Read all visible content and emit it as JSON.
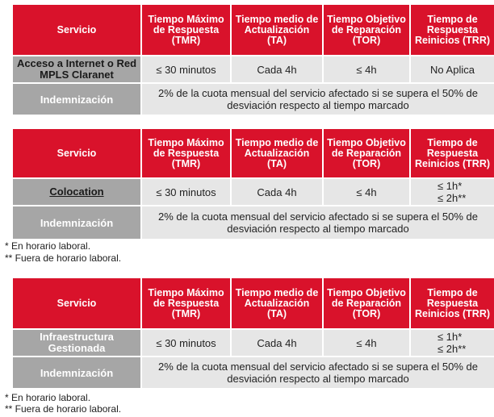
{
  "headers": {
    "servicio": "Servicio",
    "tmr": "Tiempo Máximo de Respuesta (TMR)",
    "ta": "Tiempo medio de Actualización (TA)",
    "tor": "Tiempo Objetivo de Reparación (TOR)",
    "trr": "Tiempo de Respuesta Reinicios (TRR)"
  },
  "indemnizacion_label": "Indemnización",
  "indemnizacion_text": "2% de la cuota mensual del servicio afectado si se supera el 50% de desviación respecto al tiempo marcado",
  "tables": [
    {
      "service": "Acceso a Internet o Red MPLS Claranet",
      "tmr": "≤ 30 minutos",
      "ta": "Cada 4h",
      "tor": "≤ 4h",
      "trr": [
        "No Aplica"
      ]
    },
    {
      "service": "Colocation",
      "tmr": "≤ 30 minutos",
      "ta": "Cada 4h",
      "tor": "≤ 4h",
      "trr": [
        "≤ 1h*",
        "≤ 2h**"
      ]
    },
    {
      "service": "Infraestructura Gestionada",
      "tmr": "≤ 30 minutos",
      "ta": "Cada 4h",
      "tor": "≤ 4h",
      "trr": [
        "≤ 1h*",
        "≤ 2h**"
      ]
    }
  ],
  "footnotes": {
    "star1": "* En horario laboral.",
    "star2": "** Fuera de horario laboral."
  }
}
